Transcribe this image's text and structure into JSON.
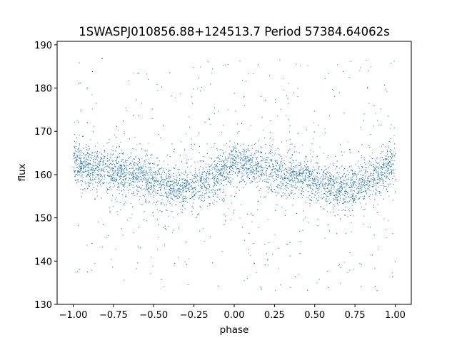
{
  "chart_data": {
    "type": "scatter",
    "title": "1SWASPJ010856.88+124513.7 Period 57384.64062s",
    "xlabel": "phase",
    "ylabel": "flux",
    "xlim": [
      -1.1,
      1.1
    ],
    "ylim": [
      130,
      190.8
    ],
    "xticks": [
      -1.0,
      -0.75,
      -0.5,
      -0.25,
      0.0,
      0.25,
      0.5,
      0.75,
      1.0
    ],
    "xtick_labels": [
      "−1.00",
      "−0.75",
      "−0.50",
      "−0.25",
      "0.00",
      "0.25",
      "0.50",
      "0.75",
      "1.00"
    ],
    "yticks": [
      130,
      140,
      150,
      160,
      170,
      180,
      190
    ],
    "ytick_labels": [
      "130",
      "140",
      "150",
      "160",
      "170",
      "180",
      "190"
    ],
    "grid": false,
    "legend": "none",
    "point_color": "#1f77b4",
    "binned_mean": {
      "phase": [
        -1.0,
        -0.9,
        -0.8,
        -0.7,
        -0.6,
        -0.5,
        -0.4,
        -0.3,
        -0.2,
        -0.1,
        0.0,
        0.1,
        0.2,
        0.3,
        0.4,
        0.5,
        0.6,
        0.7,
        0.8,
        0.9,
        1.0
      ],
      "flux": [
        163,
        162,
        161,
        160.5,
        160,
        158.5,
        157,
        157,
        158,
        160,
        163,
        162,
        161,
        160.5,
        160,
        158.5,
        157,
        157,
        158,
        160,
        163
      ]
    }
  }
}
